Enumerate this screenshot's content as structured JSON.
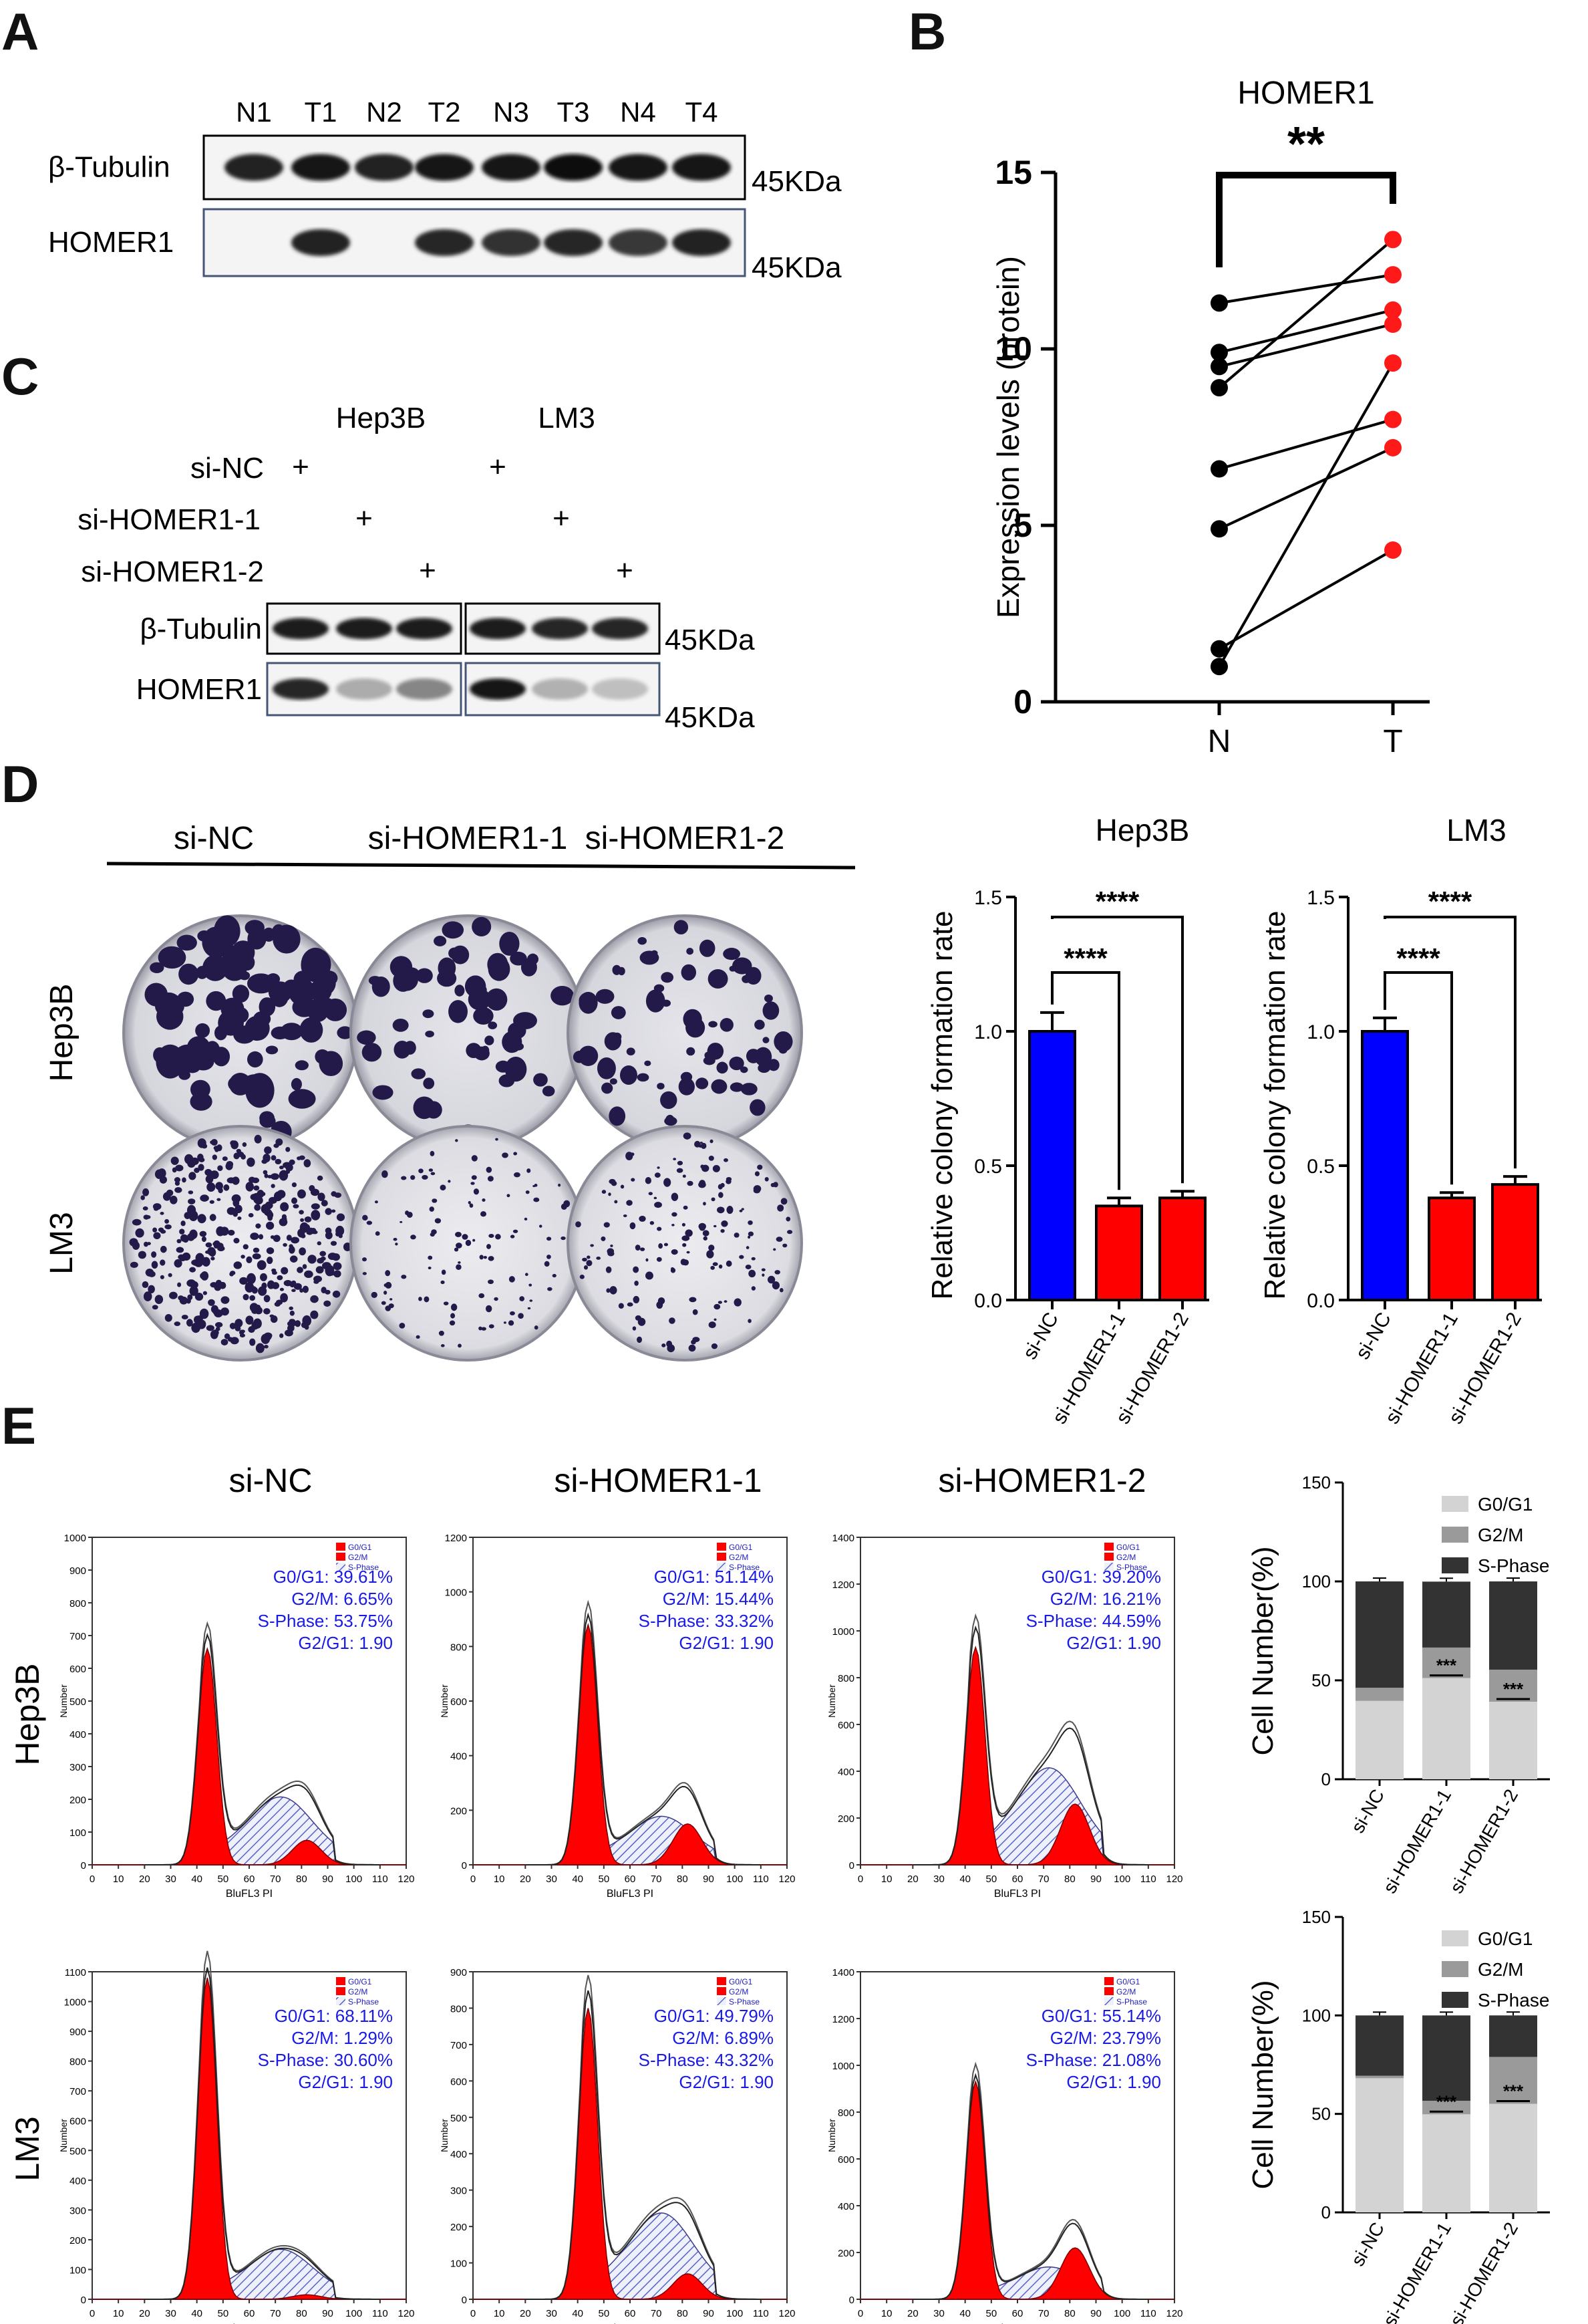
{
  "panels": {
    "A": {
      "letter": "A",
      "lanes": [
        "N1",
        "T1",
        "N2",
        "T2",
        "N3",
        "T3",
        "N4",
        "T4"
      ],
      "rows": [
        {
          "label": "β-Tubulin",
          "size": "45KDa",
          "intensity": [
            0.85,
            0.9,
            0.85,
            0.95,
            0.9,
            1.0,
            0.9,
            0.95
          ]
        },
        {
          "label": "HOMER1",
          "size": "45KDa",
          "intensity": [
            0.02,
            0.85,
            0.02,
            0.8,
            0.75,
            0.8,
            0.7,
            0.85
          ]
        }
      ]
    },
    "B": {
      "letter": "B"
    },
    "C": {
      "letter": "C",
      "cells": [
        "Hep3B",
        "LM3"
      ],
      "treatments": [
        "si-NC",
        "si-HOMER1-1",
        "si-HOMER1-2"
      ],
      "plus": "+",
      "rows": [
        {
          "label": "β-Tubulin",
          "size": "45KDa",
          "intensity": [
            0.9,
            0.9,
            0.9,
            0.9,
            0.85,
            0.85
          ]
        },
        {
          "label": "HOMER1",
          "size": "45KDa",
          "intensity": [
            0.85,
            0.15,
            0.35,
            0.95,
            0.12,
            0.05
          ]
        }
      ]
    },
    "D": {
      "letter": "D",
      "col_labels": [
        "si-NC",
        "si-HOMER1-1",
        "si-HOMER1-2"
      ],
      "row_labels": [
        "Hep3B",
        "LM3"
      ]
    },
    "E": {
      "letter": "E",
      "col_labels": [
        "si-NC",
        "si-HOMER1-1",
        "si-HOMER1-2"
      ],
      "row_labels": [
        "Hep3B",
        "LM3"
      ],
      "legend": [
        "G0/G1",
        "G2/M",
        "S-Phase"
      ],
      "xlabel": "BluFL3 PI",
      "ylabel": "Number",
      "xticks": [
        "0",
        "10",
        "20",
        "30",
        "40",
        "50",
        "60",
        "70",
        "80",
        "90",
        "100",
        "110",
        "120"
      ],
      "histograms": [
        {
          "g0g1": "G0/G1: 39.61%",
          "g2m": "G2/M: 6.65%",
          "s": "S-Phase: 53.75%",
          "ratio": "G2/G1: 1.90",
          "yticks": [
            "0",
            "100",
            "200",
            "300",
            "400",
            "500",
            "600",
            "700",
            "800",
            "900",
            "1000"
          ],
          "ymax": 1000,
          "g1h": 660,
          "g2h": 75,
          "sh": 210
        },
        {
          "g0g1": "G0/G1: 51.14%",
          "g2m": "G2/M: 15.44%",
          "s": "S-Phase: 33.32%",
          "ratio": "G2/G1: 1.90",
          "yticks": [
            "0",
            "200",
            "400",
            "600",
            "800",
            "1000",
            "1200"
          ],
          "ymax": 1200,
          "g1h": 880,
          "g2h": 150,
          "sh": 180
        },
        {
          "g0g1": "G0/G1: 39.20%",
          "g2m": "G2/M: 16.21%",
          "s": "S-Phase: 44.59%",
          "ratio": "G2/G1: 1.90",
          "yticks": [
            "0",
            "200",
            "400",
            "600",
            "800",
            "1000",
            "1200",
            "1400"
          ],
          "ymax": 1400,
          "g1h": 930,
          "g2h": 260,
          "sh": 420
        },
        {
          "g0g1": "G0/G1: 68.11%",
          "g2m": "G2/M: 1.29%",
          "s": "S-Phase: 30.60%",
          "ratio": "G2/G1: 1.90",
          "yticks": [
            "0",
            "100",
            "200",
            "300",
            "400",
            "500",
            "600",
            "700",
            "800",
            "900",
            "1000",
            "1100"
          ],
          "ymax": 1100,
          "g1h": 1080,
          "g2h": 15,
          "sh": 170
        },
        {
          "g0g1": "G0/G1: 49.79%",
          "g2m": "G2/M: 6.89%",
          "s": "S-Phase: 43.32%",
          "ratio": "G2/G1: 1.90",
          "yticks": [
            "0",
            "100",
            "200",
            "300",
            "400",
            "500",
            "600",
            "700",
            "800",
            "900"
          ],
          "ymax": 900,
          "g1h": 800,
          "g2h": 70,
          "sh": 240
        },
        {
          "g0g1": "G0/G1: 55.14%",
          "g2m": "G2/M: 23.79%",
          "s": "S-Phase: 21.08%",
          "ratio": "G2/G1: 1.90",
          "yticks": [
            "0",
            "200",
            "400",
            "600",
            "800",
            "1000",
            "1200",
            "1400"
          ],
          "ymax": 1400,
          "g1h": 930,
          "g2h": 220,
          "sh": 140
        }
      ]
    }
  },
  "chart_data": [
    {
      "type": "line",
      "title": "HOMER1",
      "ylabel": "Expression levels (protein)",
      "categories": [
        "N",
        "T"
      ],
      "ylim": [
        0,
        15
      ],
      "yticks": [
        "0",
        "5",
        "10",
        "15"
      ],
      "annotation": "**",
      "pairs": [
        [
          11.3,
          12.1
        ],
        [
          9.9,
          11.1
        ],
        [
          9.5,
          10.7
        ],
        [
          8.9,
          13.1
        ],
        [
          6.6,
          8.0
        ],
        [
          4.9,
          7.2
        ],
        [
          1.5,
          4.3
        ],
        [
          1.0,
          9.6
        ]
      ],
      "colors": {
        "N": "#000000",
        "T": "#ff1a1a"
      }
    },
    {
      "type": "bar",
      "title": "Hep3B",
      "ylabel": "Relative colony formation rate",
      "categories": [
        "si-NC",
        "si-HOMER1-1",
        "si-HOMER1-2"
      ],
      "values": [
        1.0,
        0.35,
        0.38
      ],
      "errors": [
        0.07,
        0.03,
        0.025
      ],
      "colors": [
        "#0000ff",
        "#ff0000",
        "#ff0000"
      ],
      "ylim": [
        0,
        1.5
      ],
      "yticks": [
        "0.0",
        "0.5",
        "1.0",
        "1.5"
      ],
      "annotations": [
        "****",
        "****"
      ]
    },
    {
      "type": "bar",
      "title": "LM3",
      "ylabel": "Relative colony formation rate",
      "categories": [
        "si-NC",
        "si-HOMER1-1",
        "si-HOMER1-2"
      ],
      "values": [
        1.0,
        0.38,
        0.43
      ],
      "errors": [
        0.05,
        0.02,
        0.03
      ],
      "colors": [
        "#0000ff",
        "#ff0000",
        "#ff0000"
      ],
      "ylim": [
        0,
        1.5
      ],
      "yticks": [
        "0.0",
        "0.5",
        "1.0",
        "1.5"
      ],
      "annotations": [
        "****",
        "****"
      ]
    },
    {
      "type": "bar",
      "stacked": true,
      "row": "Hep3B",
      "ylabel": "Cell Number(%)",
      "categories": [
        "si-NC",
        "si-HOMER1-1",
        "si-HOMER1-2"
      ],
      "series": [
        {
          "name": "G0/G1",
          "values": [
            39.61,
            51.14,
            39.2
          ],
          "color": "#d3d3d3"
        },
        {
          "name": "G2/M",
          "values": [
            6.65,
            15.44,
            16.21
          ],
          "color": "#9a9a9a"
        },
        {
          "name": "S-Phase",
          "values": [
            53.75,
            33.32,
            44.59
          ],
          "color": "#333333"
        }
      ],
      "ylim": [
        0,
        150
      ],
      "yticks": [
        "0",
        "50",
        "100",
        "150"
      ],
      "annotation": "***"
    },
    {
      "type": "bar",
      "stacked": true,
      "row": "LM3",
      "ylabel": "Cell Number(%)",
      "categories": [
        "si-NC",
        "si-HOMER1-1",
        "si-HOMER1-2"
      ],
      "series": [
        {
          "name": "G0/G1",
          "values": [
            68.11,
            49.79,
            55.14
          ],
          "color": "#d3d3d3"
        },
        {
          "name": "G2/M",
          "values": [
            1.29,
            6.89,
            23.79
          ],
          "color": "#9a9a9a"
        },
        {
          "name": "S-Phase",
          "values": [
            30.6,
            43.32,
            21.08
          ],
          "color": "#333333"
        }
      ],
      "ylim": [
        0,
        150
      ],
      "yticks": [
        "0",
        "50",
        "100",
        "150"
      ],
      "annotation": "***"
    }
  ]
}
